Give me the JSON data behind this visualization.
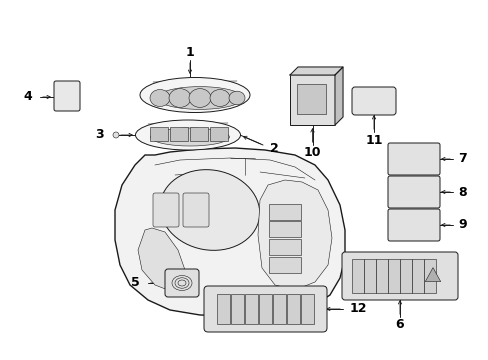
{
  "bg_color": "#ffffff",
  "line_color": "#1a1a1a",
  "text_color": "#000000",
  "fig_width": 4.89,
  "fig_height": 3.6,
  "dpi": 100,
  "lw_main": 0.7,
  "lw_thin": 0.4,
  "lw_leader": 0.6
}
